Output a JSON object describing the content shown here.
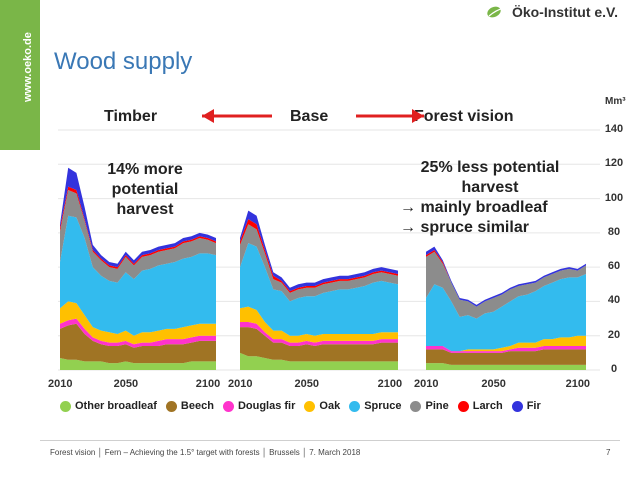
{
  "slide": {
    "website": "www.oeko.de",
    "logo_text": "Öko-Institut e.V.",
    "title": "Wood supply",
    "footer": "Forest vision │ Fern – Achieving the 1.5° target with forests │ Brussels │ 7. March 2018",
    "page_number": "7",
    "unit": "Mm³",
    "brand_color": "#7ab648",
    "title_color": "#3a78b5",
    "arrow_color": "#e02020"
  },
  "annotations": {
    "timber": [
      "14% more",
      "potential",
      "harvest"
    ],
    "forest_vision": [
      "25% less potential",
      "harvest",
      "→ mainly broadleaf",
      "→ spruce similar"
    ]
  },
  "chart_data": {
    "type": "area",
    "stacked": true,
    "ylim": [
      0,
      140
    ],
    "yticks": [
      0,
      20,
      40,
      60,
      80,
      100,
      120,
      140
    ],
    "ylabel": "Mm³",
    "x": [
      2010,
      2015,
      2020,
      2025,
      2030,
      2035,
      2040,
      2045,
      2050,
      2055,
      2060,
      2065,
      2070,
      2075,
      2080,
      2085,
      2090,
      2095,
      2100,
      2105
    ],
    "xticks": [
      2010,
      2050,
      2100
    ],
    "legend_position": "bottom",
    "series_names": [
      "Other broadleaf",
      "Beech",
      "Douglas fir",
      "Oak",
      "Spruce",
      "Pine",
      "Larch",
      "Fir"
    ],
    "colors": [
      "#92d050",
      "#a07424",
      "#ff33cc",
      "#ffc000",
      "#33bbee",
      "#8c8c8c",
      "#ff0000",
      "#3333dd"
    ],
    "panels": [
      {
        "name": "Timber",
        "series": [
          {
            "name": "Other broadleaf",
            "values": [
              7,
              6,
              6,
              5,
              5,
              5,
              4,
              4,
              5,
              4,
              4,
              4,
              4,
              4,
              4,
              4,
              5,
              5,
              5,
              5
            ]
          },
          {
            "name": "Beech",
            "values": [
              17,
              20,
              21,
              16,
              12,
              10,
              10,
              10,
              10,
              9,
              10,
              10,
              10,
              11,
              11,
              11,
              11,
              12,
              12,
              12
            ]
          },
          {
            "name": "Douglas fir",
            "values": [
              3,
              3,
              3,
              3,
              2,
              2,
              2,
              2,
              2,
              2,
              2,
              2,
              3,
              3,
              3,
              3,
              3,
              3,
              3,
              3
            ]
          },
          {
            "name": "Oak",
            "values": [
              9,
              11,
              9,
              8,
              6,
              6,
              6,
              5,
              6,
              5,
              6,
              6,
              6,
              6,
              6,
              7,
              7,
              7,
              7,
              7
            ]
          },
          {
            "name": "Spruce",
            "values": [
              27,
              50,
              50,
              45,
              35,
              32,
              30,
              30,
              34,
              33,
              36,
              37,
              38,
              38,
              39,
              40,
              40,
              41,
              41,
              40
            ]
          },
          {
            "name": "Pine",
            "values": [
              18,
              15,
              14,
              10,
              9,
              9,
              8,
              8,
              9,
              8,
              8,
              8,
              8,
              8,
              8,
              9,
              9,
              9,
              8,
              7
            ]
          },
          {
            "name": "Larch",
            "values": [
              2,
              2,
              2,
              1,
              1,
              1,
              1,
              1,
              1,
              1,
              1,
              1,
              1,
              1,
              1,
              1,
              1,
              1,
              1,
              1
            ]
          },
          {
            "name": "Fir",
            "values": [
              2,
              11,
              10,
              7,
              3,
              2,
              2,
              2,
              2,
              2,
              2,
              2,
              2,
              2,
              2,
              2,
              2,
              2,
              2,
              2
            ]
          }
        ]
      },
      {
        "name": "Base",
        "series": [
          {
            "name": "Other broadleaf",
            "values": [
              10,
              8,
              8,
              7,
              6,
              6,
              5,
              5,
              5,
              5,
              5,
              5,
              5,
              5,
              5,
              5,
              5,
              5,
              5,
              5
            ]
          },
          {
            "name": "Beech",
            "values": [
              15,
              17,
              16,
              13,
              10,
              10,
              9,
              9,
              10,
              9,
              10,
              10,
              10,
              10,
              10,
              10,
              10,
              11,
              11,
              11
            ]
          },
          {
            "name": "Douglas fir",
            "values": [
              3,
              3,
              3,
              2,
              2,
              2,
              2,
              2,
              2,
              2,
              2,
              2,
              2,
              2,
              2,
              2,
              2,
              2,
              2,
              2
            ]
          },
          {
            "name": "Oak",
            "values": [
              8,
              9,
              8,
              6,
              5,
              5,
              4,
              4,
              4,
              4,
              4,
              4,
              4,
              4,
              4,
              4,
              4,
              4,
              4,
              4
            ]
          },
          {
            "name": "Spruce",
            "values": [
              24,
              37,
              37,
              32,
              24,
              23,
              20,
              22,
              22,
              23,
              24,
              25,
              26,
              26,
              27,
              28,
              30,
              30,
              29,
              28
            ]
          },
          {
            "name": "Pine",
            "values": [
              13,
              11,
              10,
              8,
              6,
              5,
              5,
              5,
              5,
              5,
              5,
              5,
              5,
              5,
              5,
              5,
              5,
              5,
              5,
              5
            ]
          },
          {
            "name": "Larch",
            "values": [
              2,
              3,
              3,
              2,
              2,
              1,
              1,
              1,
              1,
              1,
              1,
              1,
              1,
              1,
              1,
              1,
              1,
              1,
              1,
              1
            ]
          },
          {
            "name": "Fir",
            "values": [
              2,
              5,
              5,
              3,
              2,
              2,
              2,
              2,
              2,
              2,
              2,
              2,
              2,
              2,
              2,
              2,
              2,
              2,
              2,
              2
            ]
          }
        ]
      },
      {
        "name": "Forest vision",
        "series": [
          {
            "name": "Other broadleaf",
            "values": [
              4,
              4,
              4,
              3,
              3,
              3,
              3,
              3,
              3,
              3,
              3,
              3,
              3,
              3,
              3,
              3,
              3,
              3,
              3,
              3
            ]
          },
          {
            "name": "Beech",
            "values": [
              8,
              8,
              8,
              7,
              7,
              7,
              7,
              7,
              7,
              7,
              8,
              8,
              8,
              8,
              9,
              9,
              9,
              9,
              9,
              9
            ]
          },
          {
            "name": "Douglas fir",
            "values": [
              2,
              2,
              2,
              1,
              1,
              1,
              1,
              1,
              1,
              1,
              1,
              2,
              2,
              2,
              2,
              2,
              2,
              2,
              2,
              2
            ]
          },
          {
            "name": "Oak",
            "values": [
              0,
              0,
              0,
              0,
              0,
              1,
              1,
              1,
              1,
              2,
              2,
              3,
              3,
              3,
              4,
              4,
              5,
              5,
              6,
              6
            ]
          },
          {
            "name": "Spruce",
            "values": [
              28,
              36,
              34,
              29,
              20,
              20,
              18,
              21,
              22,
              24,
              26,
              27,
              28,
              30,
              31,
              33,
              34,
              35,
              34,
              36
            ]
          },
          {
            "name": "Pine",
            "values": [
              24,
              19,
              14,
              11,
              10,
              8,
              7,
              7,
              8,
              7,
              7,
              6,
              6,
              5,
              5,
              5,
              5,
              5,
              4,
              5
            ]
          },
          {
            "name": "Larch",
            "values": [
              1,
              1,
              1,
              0,
              0,
              0,
              0,
              0,
              0,
              0,
              0,
              0,
              0,
              0,
              0,
              0,
              0,
              0,
              0,
              0
            ]
          },
          {
            "name": "Fir",
            "values": [
              2,
              2,
              1,
              1,
              1,
              1,
              1,
              1,
              1,
              1,
              1,
              1,
              1,
              1,
              1,
              1,
              1,
              1,
              1,
              1
            ]
          }
        ]
      }
    ]
  }
}
